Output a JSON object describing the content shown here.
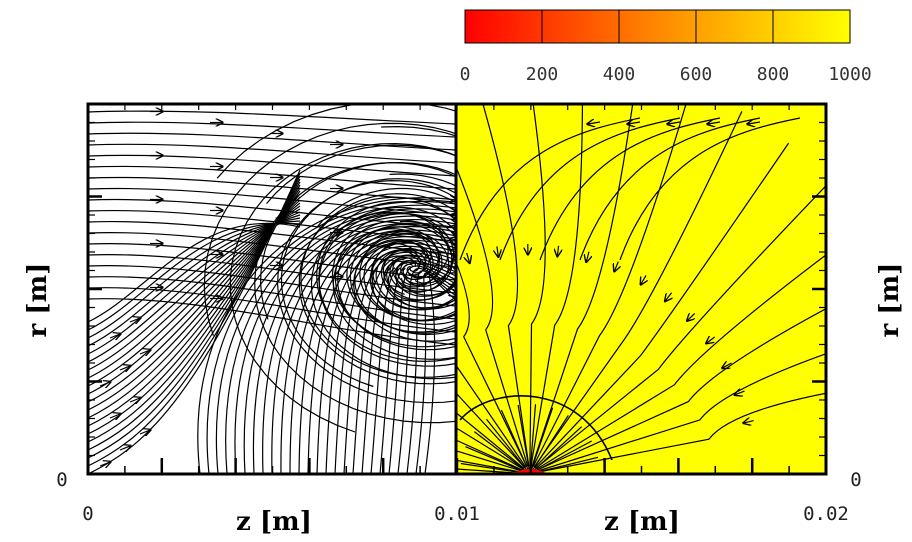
{
  "chart_data": {
    "type": "streamline",
    "xlabel": "z [m]",
    "ylabel": "r [m]",
    "xlim": [
      0,
      0.02
    ],
    "x_tick_labels": [
      {
        "value": 0,
        "label": "0"
      },
      {
        "value": 0.01,
        "label": "0.01"
      },
      {
        "value": 0.02,
        "label": "0.02"
      }
    ],
    "y_tick_labels": [
      {
        "value": 0,
        "label": "0"
      }
    ],
    "colorbar": {
      "min": 0,
      "max": 1000,
      "tick_labels": [
        {
          "value": 0,
          "label": "0"
        },
        {
          "value": 200,
          "label": "200"
        },
        {
          "value": 400,
          "label": "400"
        },
        {
          "value": 600,
          "label": "600"
        },
        {
          "value": 800,
          "label": "800"
        },
        {
          "value": 1000,
          "label": "1000"
        }
      ],
      "color_low": "#ff0000",
      "color_mid": "#ff8800",
      "color_high": "#ffff00"
    },
    "panels": [
      {
        "side": "left",
        "x_range": [
          0,
          0.01
        ],
        "fill": "#ffffff",
        "pattern": "vortex"
      },
      {
        "side": "right",
        "x_range": [
          0.01,
          0.02
        ],
        "fill": "#ffff00",
        "pattern": "radial-inflow"
      }
    ]
  }
}
